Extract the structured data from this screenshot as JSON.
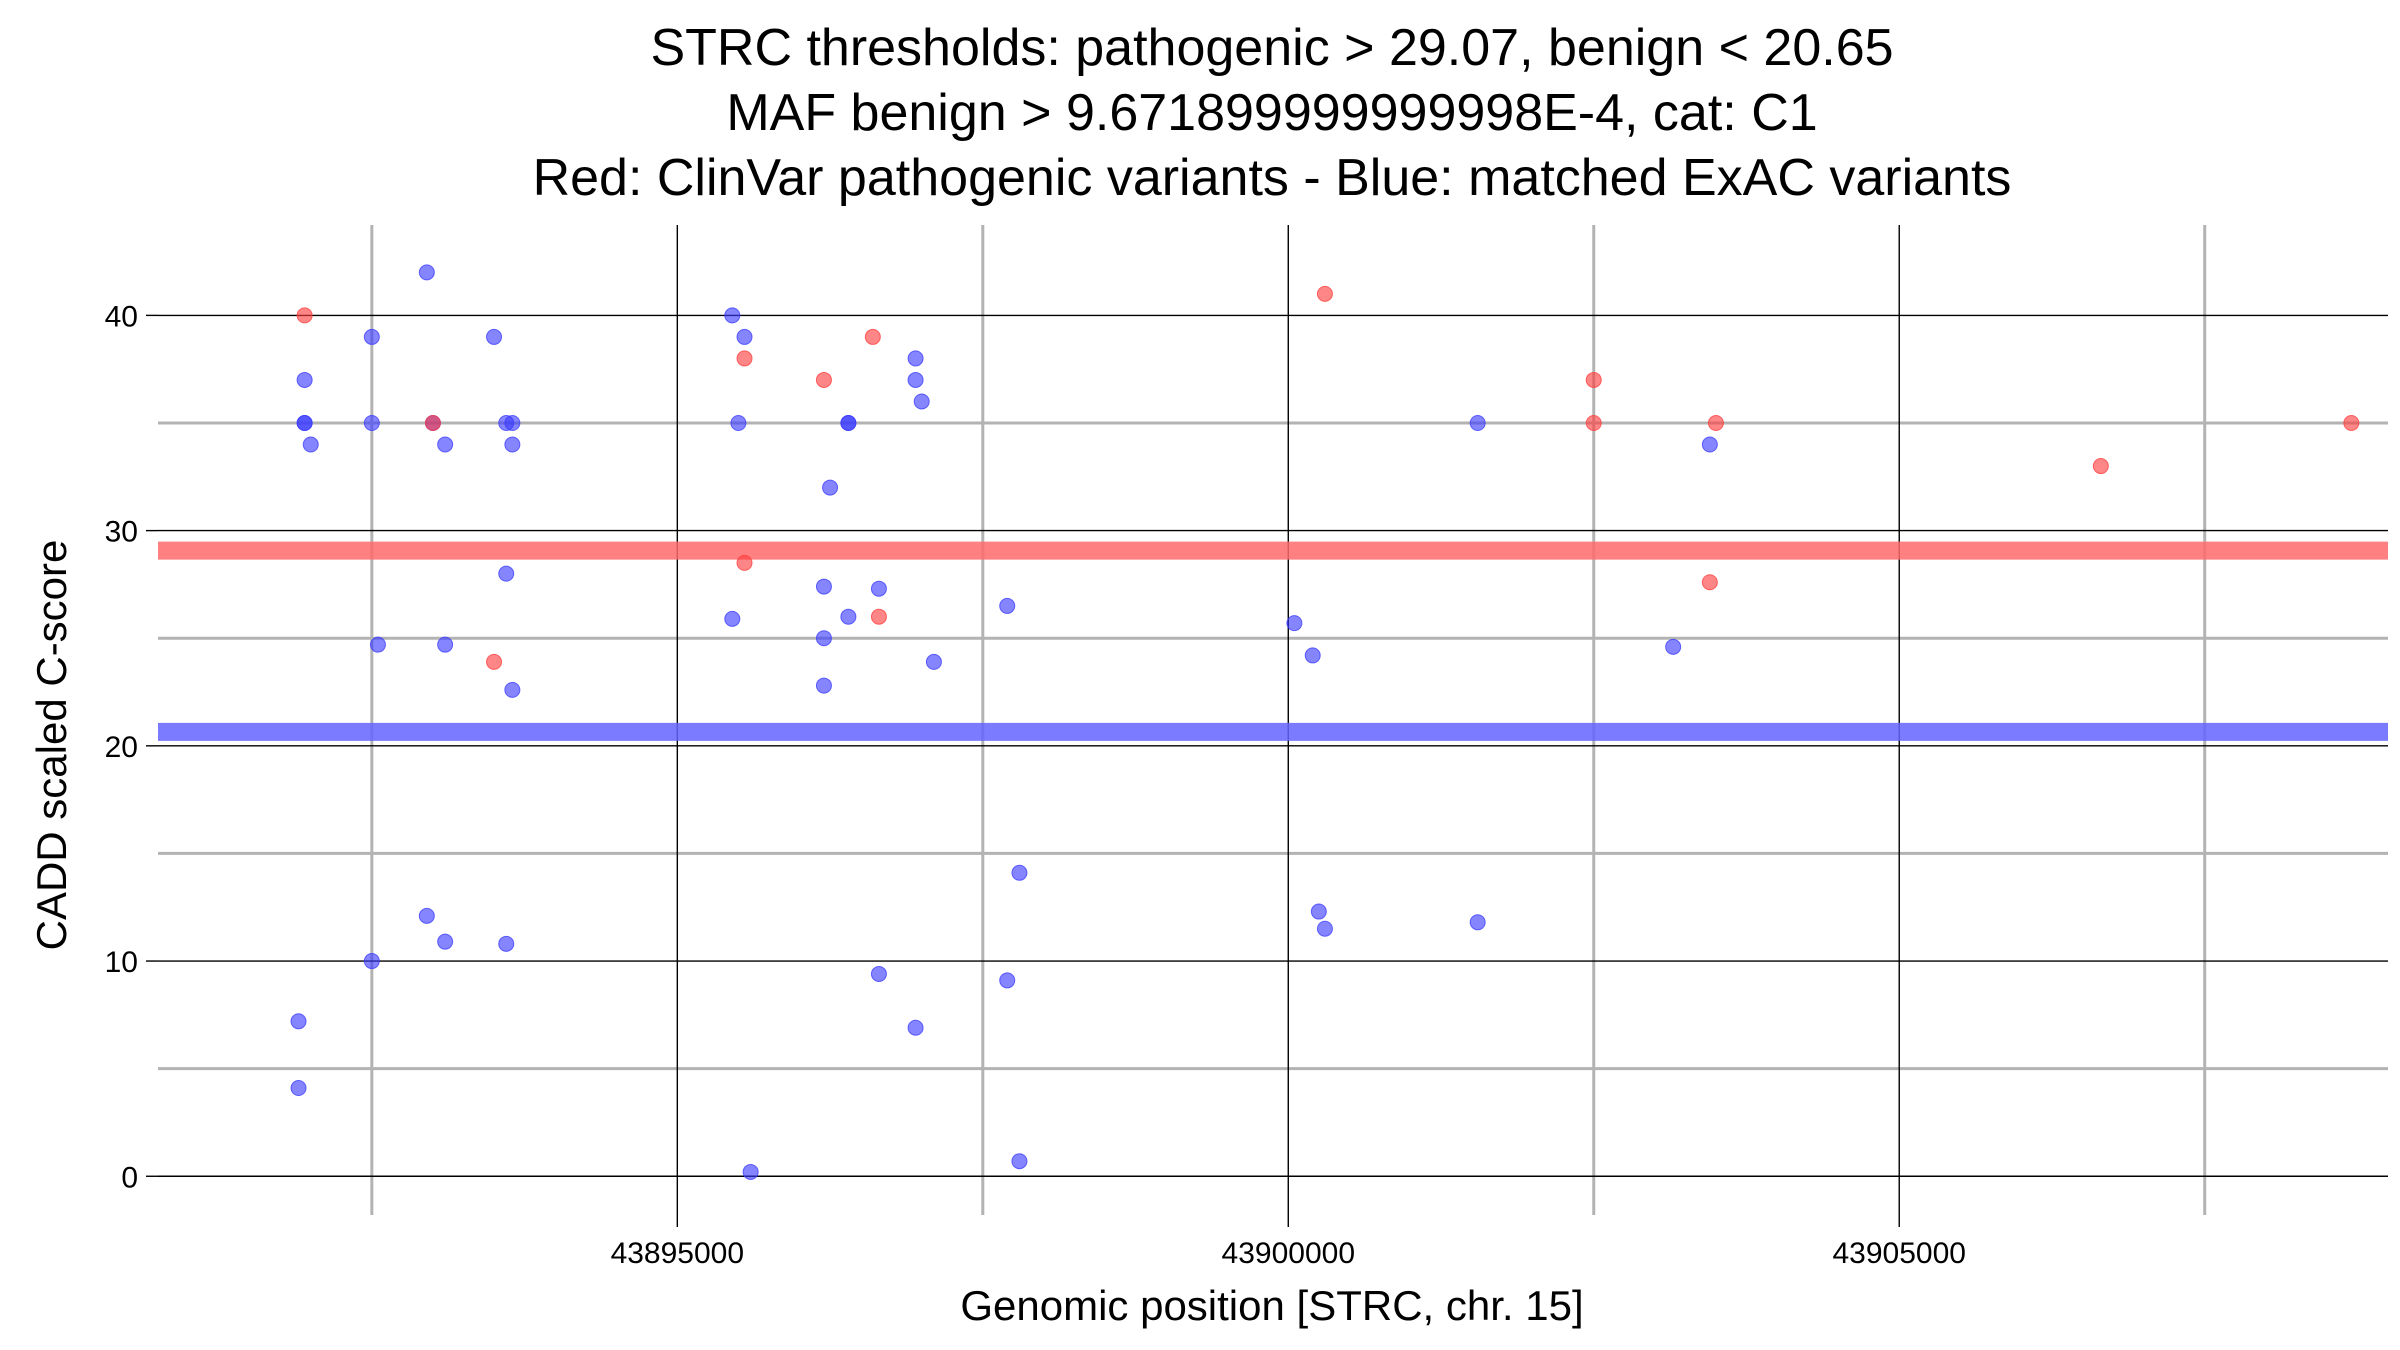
{
  "chart_data": {
    "type": "scatter",
    "title": [
      "STRC thresholds: pathogenic > 29.07, benign < 20.65",
      "MAF benign > 9.671899999999998E-4, cat: C1",
      "Red: ClinVar pathogenic variants - Blue: matched ExAC variants"
    ],
    "xlabel": "Genomic position [STRC, chr. 15]",
    "ylabel": "CADD scaled C-score",
    "xlim": [
      43890750,
      43909000
    ],
    "ylim": [
      -1.8,
      44.2
    ],
    "x_ticks": [
      43895000,
      43900000,
      43905000
    ],
    "x_tick_labels": [
      "43895000",
      "43900000",
      "43905000"
    ],
    "x_minor_ticks": [
      43892500,
      43897500,
      43902500,
      43907500
    ],
    "y_ticks": [
      0,
      10,
      20,
      30,
      40
    ],
    "y_tick_labels": [
      "0",
      "10",
      "20",
      "30",
      "40"
    ],
    "y_minor_ticks": [
      5,
      15,
      25,
      35
    ],
    "thresholds": {
      "pathogenic": 29.07,
      "benign": 20.65,
      "pathogenic_color": "#ff6a6a",
      "benign_color": "#6464ff"
    },
    "grid": true,
    "series": [
      {
        "name": "ClinVar pathogenic variants",
        "color": "#ff3b3b",
        "points": [
          [
            43891950,
            40
          ],
          [
            43893000,
            35
          ],
          [
            43893500,
            23.9
          ],
          [
            43895550,
            38
          ],
          [
            43895550,
            28.5
          ],
          [
            43896200,
            37
          ],
          [
            43896600,
            39
          ],
          [
            43896650,
            26
          ],
          [
            43900300,
            41
          ],
          [
            43902500,
            37
          ],
          [
            43902500,
            35
          ],
          [
            43903500,
            35
          ],
          [
            43903450,
            27.6
          ],
          [
            43906650,
            33
          ],
          [
            43908700,
            35
          ]
        ]
      },
      {
        "name": "matched ExAC variants",
        "color": "#3a3aff",
        "points": [
          [
            43891950,
            37
          ],
          [
            43891950,
            35
          ],
          [
            43891950,
            35
          ],
          [
            43892000,
            34
          ],
          [
            43892500,
            39
          ],
          [
            43892500,
            35
          ],
          [
            43892550,
            24.7
          ],
          [
            43892950,
            42
          ],
          [
            43893000,
            35
          ],
          [
            43893100,
            34
          ],
          [
            43893100,
            24.7
          ],
          [
            43893500,
            39
          ],
          [
            43893600,
            35
          ],
          [
            43893650,
            35
          ],
          [
            43893650,
            34
          ],
          [
            43893600,
            28
          ],
          [
            43893650,
            22.6
          ],
          [
            43895450,
            40
          ],
          [
            43895550,
            39
          ],
          [
            43895500,
            35
          ],
          [
            43895450,
            25.9
          ],
          [
            43896250,
            32
          ],
          [
            43896400,
            35
          ],
          [
            43896400,
            35
          ],
          [
            43896200,
            27.4
          ],
          [
            43896200,
            25
          ],
          [
            43896400,
            26
          ],
          [
            43896200,
            22.8
          ],
          [
            43896650,
            27.3
          ],
          [
            43896950,
            38
          ],
          [
            43896950,
            37
          ],
          [
            43897000,
            36
          ],
          [
            43897100,
            23.9
          ],
          [
            43897700,
            26.5
          ],
          [
            43900050,
            25.7
          ],
          [
            43900200,
            24.2
          ],
          [
            43901550,
            35
          ],
          [
            43903450,
            34
          ],
          [
            43903150,
            24.6
          ],
          [
            43891900,
            7.2
          ],
          [
            43891900,
            4.1
          ],
          [
            43892500,
            10
          ],
          [
            43892950,
            12.1
          ],
          [
            43893100,
            10.9
          ],
          [
            43893600,
            10.8
          ],
          [
            43895600,
            0.2
          ],
          [
            43896650,
            9.4
          ],
          [
            43896950,
            6.9
          ],
          [
            43897700,
            9.1
          ],
          [
            43897800,
            14.1
          ],
          [
            43897800,
            0.7
          ],
          [
            43900250,
            12.3
          ],
          [
            43900300,
            11.5
          ],
          [
            43901550,
            11.8
          ]
        ]
      }
    ]
  }
}
